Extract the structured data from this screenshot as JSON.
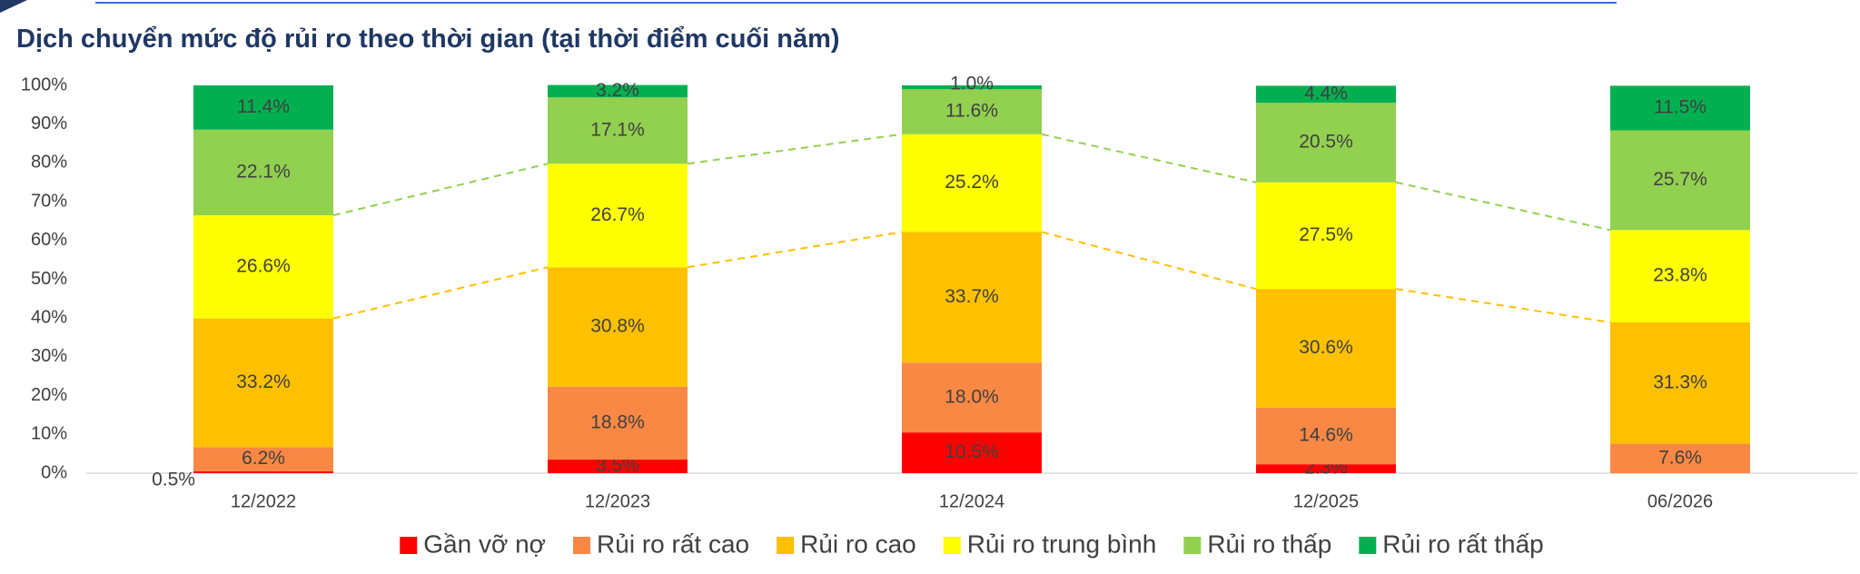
{
  "chart_data": {
    "type": "stacked_bar",
    "title": "Dịch chuyển mức độ rủi ro theo thời gian (tại thời điểm cuối năm)",
    "categories": [
      "12/2022",
      "12/2023",
      "12/2024",
      "12/2025",
      "06/2026"
    ],
    "ylim": [
      0,
      100
    ],
    "yticks": [
      {
        "value": 0,
        "label": "0%"
      },
      {
        "value": 10,
        "label": "10%"
      },
      {
        "value": 20,
        "label": "20%"
      },
      {
        "value": 30,
        "label": "30%"
      },
      {
        "value": 40,
        "label": "40%"
      },
      {
        "value": 50,
        "label": "50%"
      },
      {
        "value": 60,
        "label": "60%"
      },
      {
        "value": 70,
        "label": "70%"
      },
      {
        "value": 80,
        "label": "80%"
      },
      {
        "value": 90,
        "label": "90%"
      },
      {
        "value": 100,
        "label": "100%"
      }
    ],
    "grid": false,
    "legend": "bottom",
    "series": [
      {
        "name": "Gần vỡ nợ",
        "color": "#ff0000",
        "values": [
          0.5,
          3.5,
          10.5,
          2.3,
          null
        ],
        "value_labels": [
          "0.5%",
          "3.5%",
          "10.5%",
          "2.3%",
          null
        ]
      },
      {
        "name": "Rủi ro rất cao",
        "color": "#f98845",
        "values": [
          6.2,
          18.8,
          18.0,
          14.6,
          7.6
        ],
        "value_labels": [
          "6.2%",
          "18.8%",
          "18.0%",
          "14.6%",
          "7.6%"
        ]
      },
      {
        "name": "Rủi ro cao",
        "color": "#ffc000",
        "values": [
          33.2,
          30.8,
          33.7,
          30.6,
          31.3
        ],
        "value_labels": [
          "33.2%",
          "30.8%",
          "33.7%",
          "30.6%",
          "31.3%"
        ]
      },
      {
        "name": "Rủi ro trung bình",
        "color": "#ffff00",
        "values": [
          26.6,
          26.7,
          25.2,
          27.5,
          23.8
        ],
        "value_labels": [
          "26.6%",
          "26.7%",
          "25.2%",
          "27.5%",
          "23.8%"
        ]
      },
      {
        "name": "Rủi ro thấp",
        "color": "#92d050",
        "values": [
          22.1,
          17.1,
          11.6,
          20.5,
          25.7
        ],
        "value_labels": [
          "22.1%",
          "17.1%",
          "11.6%",
          "20.5%",
          "25.7%"
        ]
      },
      {
        "name": "Rủi ro rất thấp",
        "color": "#00b050",
        "values": [
          11.4,
          3.2,
          1.0,
          4.4,
          11.5
        ],
        "value_labels": [
          "11.4%",
          "3.2%",
          "1.0%",
          "4.4%",
          "11.5%"
        ]
      }
    ]
  }
}
